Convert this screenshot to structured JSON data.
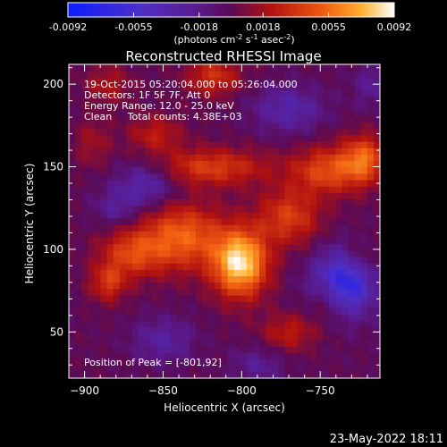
{
  "chart_data": {
    "type": "heatmap",
    "title": "Reconstructed RHESSI Image",
    "xlabel": "Heliocentric X (arcsec)",
    "ylabel": "Heliocentric Y (arcsec)",
    "xlim": [
      -910,
      -712
    ],
    "ylim": [
      22,
      212
    ],
    "xticks": [
      -900,
      -850,
      -800,
      -750
    ],
    "yticks": [
      50,
      100,
      150,
      200
    ],
    "colorbar": {
      "ticks": [
        "-0.0092",
        "-0.0055",
        "-0.0018",
        "0.0018",
        "0.0055",
        "0.0092"
      ],
      "range": [
        -0.0092,
        0.0092
      ],
      "unit_parts": [
        "(photons cm",
        "-2",
        " s",
        "-1",
        " asec",
        "-2",
        ")"
      ]
    },
    "annotations": [
      "19-Oct-2015 05:20:04.000 to 05:26:04.000",
      "Detectors: 1F 5F 7F, Att 0",
      "Energy Range: 12.0 - 25.0 keV",
      "Clean     Total counts: 4.38E+03"
    ],
    "peak_label": "Position of Peak = [-801,92]",
    "peak": {
      "x": -801,
      "y": 92,
      "value": 0.0092
    },
    "grid_size": [
      49,
      49
    ],
    "components": [
      {
        "x": -801,
        "y": 92,
        "amp": 1.0,
        "sx": 12,
        "sy": 14
      },
      {
        "x": -838,
        "y": 108,
        "amp": 0.6,
        "sx": 18,
        "sy": 14
      },
      {
        "x": -870,
        "y": 98,
        "amp": 0.45,
        "sx": 14,
        "sy": 10
      },
      {
        "x": -770,
        "y": 120,
        "amp": 0.45,
        "sx": 14,
        "sy": 12
      },
      {
        "x": -745,
        "y": 148,
        "amp": 0.5,
        "sx": 16,
        "sy": 10
      },
      {
        "x": -722,
        "y": 155,
        "amp": 0.55,
        "sx": 10,
        "sy": 10
      },
      {
        "x": -820,
        "y": 150,
        "amp": 0.45,
        "sx": 26,
        "sy": 8
      },
      {
        "x": -855,
        "y": 170,
        "amp": 0.3,
        "sx": 12,
        "sy": 8
      },
      {
        "x": -885,
        "y": 80,
        "amp": 0.4,
        "sx": 8,
        "sy": 8
      },
      {
        "x": -818,
        "y": 205,
        "amp": 0.4,
        "sx": 12,
        "sy": 8
      },
      {
        "x": -885,
        "y": 200,
        "amp": 0.25,
        "sx": 10,
        "sy": 8
      },
      {
        "x": -895,
        "y": 165,
        "amp": 0.2,
        "sx": 8,
        "sy": 10
      },
      {
        "x": -770,
        "y": 50,
        "amp": 0.3,
        "sx": 12,
        "sy": 8
      },
      {
        "x": -745,
        "y": 70,
        "amp": 0.25,
        "sx": 8,
        "sy": 10
      },
      {
        "x": -725,
        "y": 95,
        "amp": 0.2,
        "sx": 8,
        "sy": 8
      },
      {
        "x": -735,
        "y": 80,
        "amp": -0.7,
        "sx": 14,
        "sy": 14
      },
      {
        "x": -860,
        "y": 140,
        "amp": -0.35,
        "sx": 14,
        "sy": 10
      },
      {
        "x": -770,
        "y": 185,
        "amp": -0.3,
        "sx": 16,
        "sy": 10
      },
      {
        "x": -850,
        "y": 45,
        "amp": -0.25,
        "sx": 14,
        "sy": 10
      },
      {
        "x": -880,
        "y": 125,
        "amp": -0.2,
        "sx": 10,
        "sy": 8
      },
      {
        "x": -790,
        "y": 30,
        "amp": -0.2,
        "sx": 12,
        "sy": 8
      },
      {
        "x": -715,
        "y": 200,
        "amp": -0.2,
        "sx": 10,
        "sy": 10
      }
    ]
  },
  "footer": {
    "timestamp": "23-May-2022 18:11"
  }
}
